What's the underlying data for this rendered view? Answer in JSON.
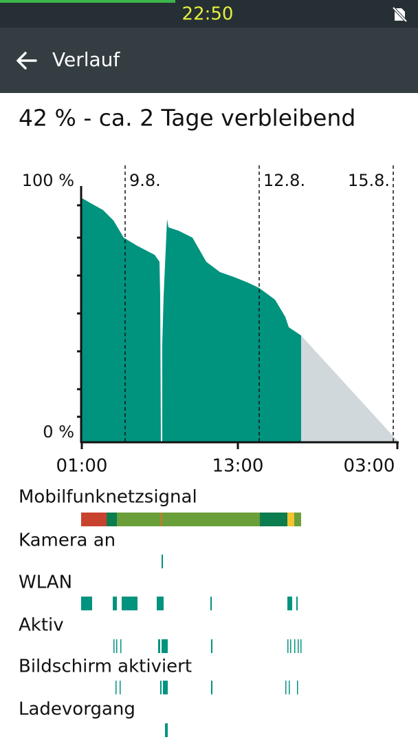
{
  "status_bar": {
    "time": "22:50"
  },
  "app_bar": {
    "title": "Verlauf"
  },
  "summary": "42 % - ca. 2 Tage verbleibend",
  "graph": {
    "y_top_label": "100 %",
    "y_bottom_label": "0 %",
    "date_markers": [
      "9.8.",
      "12.8.",
      "15.8."
    ],
    "time_labels": [
      "01:00",
      "13:00",
      "03:00"
    ]
  },
  "tracks": [
    "Mobilfunknetzsignal",
    "Kamera an",
    "WLAN",
    "Aktiv",
    "Bildschirm aktiviert",
    "Ladevorgang"
  ]
}
